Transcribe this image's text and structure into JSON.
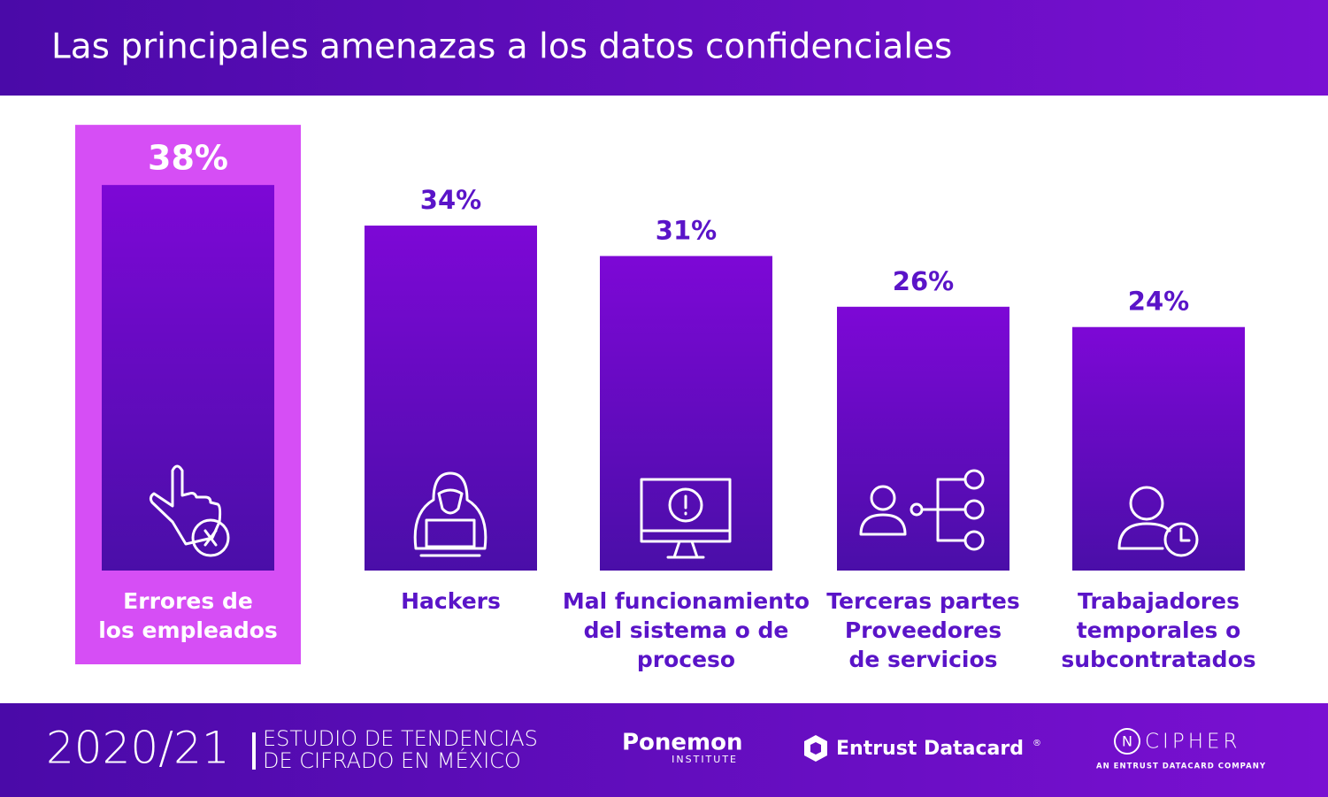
{
  "chart_data": {
    "type": "bar",
    "title": "Las principales amenazas a los datos confidenciales",
    "categories": [
      "Errores de\nlos empleados",
      "Hackers",
      "Mal funcionamiento\ndel sistema o de\nproceso",
      "Terceras partes\nProveedores\nde servicios",
      "Trabajadores\ntemporales o\nsubcontratados"
    ],
    "values": [
      38,
      34,
      31,
      26,
      24
    ],
    "value_labels": [
      "38%",
      "34%",
      "31%",
      "26%",
      "24%"
    ],
    "color": "#6a0cc8",
    "highlight": 0,
    "highlight_color": "#d64ef5"
  },
  "footer": {
    "year": "2020/21",
    "study": [
      "ESTUDIO DE TENDENCIAS",
      "DE CIFRADO EN MÉXICO"
    ],
    "ponemon": "Ponemon",
    "institute": "INSTITUTE",
    "entrust": "Entrust Datacard",
    "registered": "®",
    "ncipher_n": "N",
    "ncipher": "CIPHER",
    "ncipher_sub": "AN ENTRUST DATACARD COMPANY"
  }
}
